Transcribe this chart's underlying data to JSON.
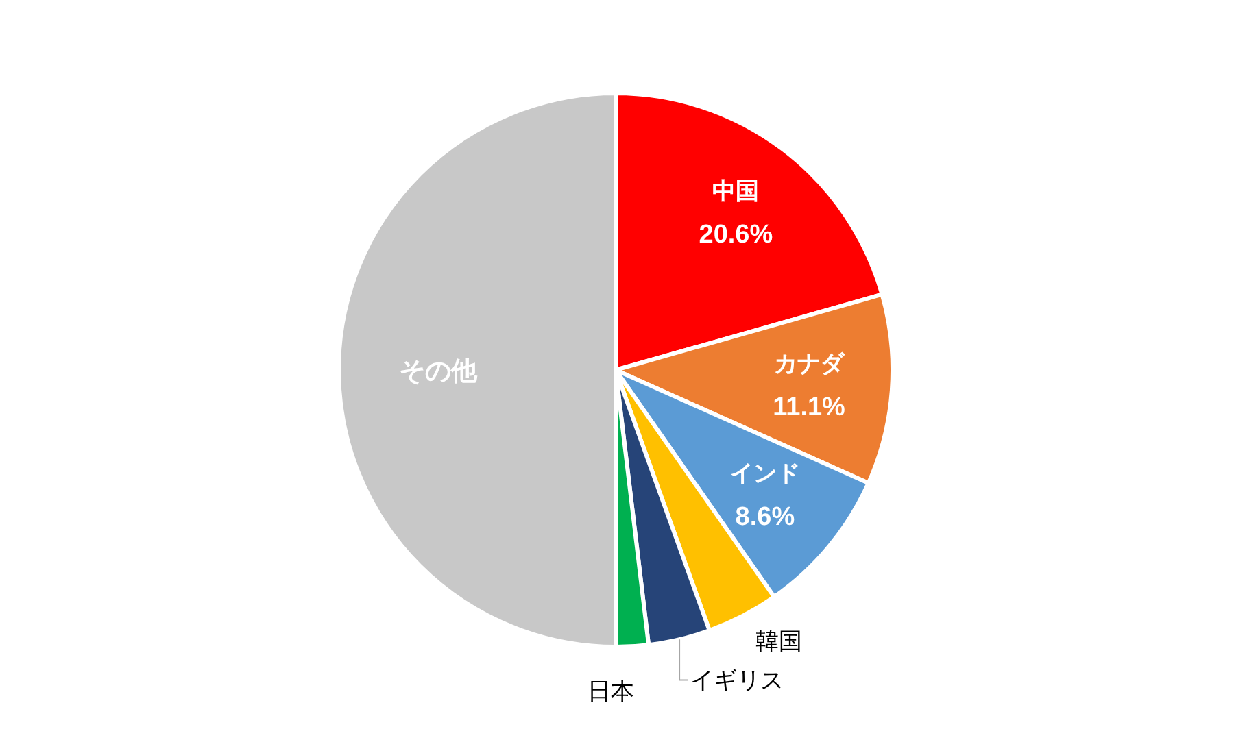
{
  "chart_data": {
    "type": "pie",
    "categories": [
      "中国",
      "カナダ",
      "インド",
      "韓国",
      "イギリス",
      "日本",
      "その他"
    ],
    "values": [
      20.6,
      11.1,
      8.6,
      4.2,
      3.6,
      1.9,
      50.0
    ],
    "colors": [
      "#ff0000",
      "#ed7d31",
      "#5b9bd5",
      "#ffc000",
      "#264478",
      "#00b050",
      "#c8c8c8"
    ],
    "value_labels": [
      "20.6%",
      "11.1%",
      "8.6%",
      null,
      null,
      null,
      null
    ],
    "legend": false
  }
}
